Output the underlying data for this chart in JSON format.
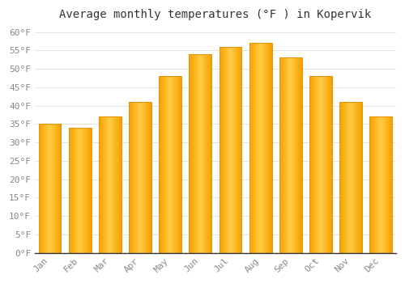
{
  "title": "Average monthly temperatures (°F ) in Kopervik",
  "months": [
    "Jan",
    "Feb",
    "Mar",
    "Apr",
    "May",
    "Jun",
    "Jul",
    "Aug",
    "Sep",
    "Oct",
    "Nov",
    "Dec"
  ],
  "values": [
    35,
    34,
    37,
    41,
    48,
    54,
    56,
    57,
    53,
    48,
    41,
    37
  ],
  "ylim": [
    0,
    62
  ],
  "yticks": [
    0,
    5,
    10,
    15,
    20,
    25,
    30,
    35,
    40,
    45,
    50,
    55,
    60
  ],
  "ytick_labels": [
    "0°F",
    "5°F",
    "10°F",
    "15°F",
    "20°F",
    "25°F",
    "30°F",
    "35°F",
    "40°F",
    "45°F",
    "50°F",
    "55°F",
    "60°F"
  ],
  "background_color": "#ffffff",
  "grid_color": "#dddddd",
  "bar_color_edge": "#E8920A",
  "bar_color_center": "#FFCC55",
  "bar_color_dark": "#F5A800",
  "title_fontsize": 10,
  "tick_fontsize": 8,
  "tick_color": "#888888",
  "bar_width": 0.75
}
